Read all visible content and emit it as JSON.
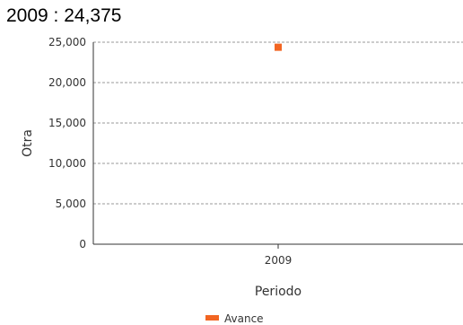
{
  "headline": "2009 : 24,375",
  "chart_data": {
    "type": "scatter",
    "title": "",
    "xlabel": "Periodo",
    "ylabel": "Otra",
    "categories": [
      "2009"
    ],
    "series": [
      {
        "name": "Avance",
        "values": [
          24375
        ]
      }
    ],
    "ylim": [
      0,
      25000
    ],
    "yticks": [
      0,
      5000,
      10000,
      15000,
      20000,
      25000
    ],
    "ytick_labels": [
      "0",
      "5,000",
      "10,000",
      "15,000",
      "20,000",
      "25,000"
    ],
    "grid": true,
    "legend": "bottom-center",
    "colors": {
      "series": "#f26522",
      "grid": "#999999",
      "axis": "#333333"
    }
  }
}
